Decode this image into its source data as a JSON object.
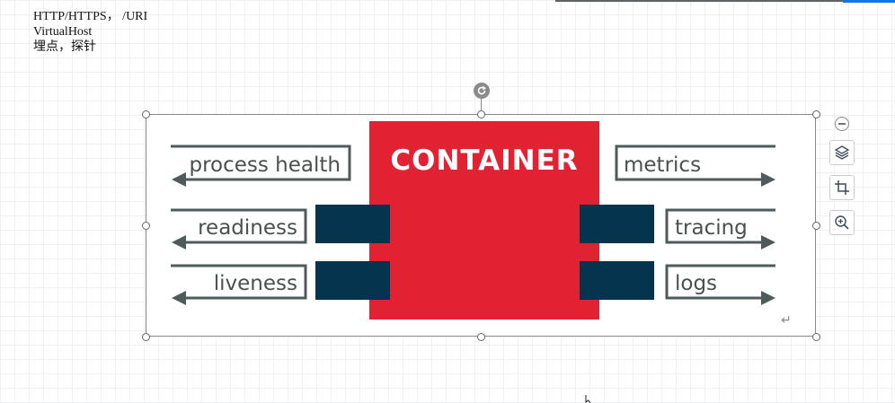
{
  "document": {
    "lines": [
      "HTTP/HTTPS， /URI",
      "VirtualHost",
      "埋点，探针"
    ]
  },
  "diagram": {
    "container_label": "CONTAINER",
    "left_labels": [
      "process health",
      "readiness",
      "liveness"
    ],
    "right_labels": [
      "metrics",
      "tracing",
      "logs"
    ],
    "colors": {
      "container_red": "#e12233",
      "port_navy": "#05344f",
      "arrow_gray": "#4f5b5b",
      "label_gray": "#4a5050"
    }
  },
  "toolbar": {
    "collapse_icon": "minus-circle-icon",
    "buttons": [
      "layers-icon",
      "crop-icon",
      "zoom-in-icon"
    ]
  },
  "return_symbol": "↵"
}
